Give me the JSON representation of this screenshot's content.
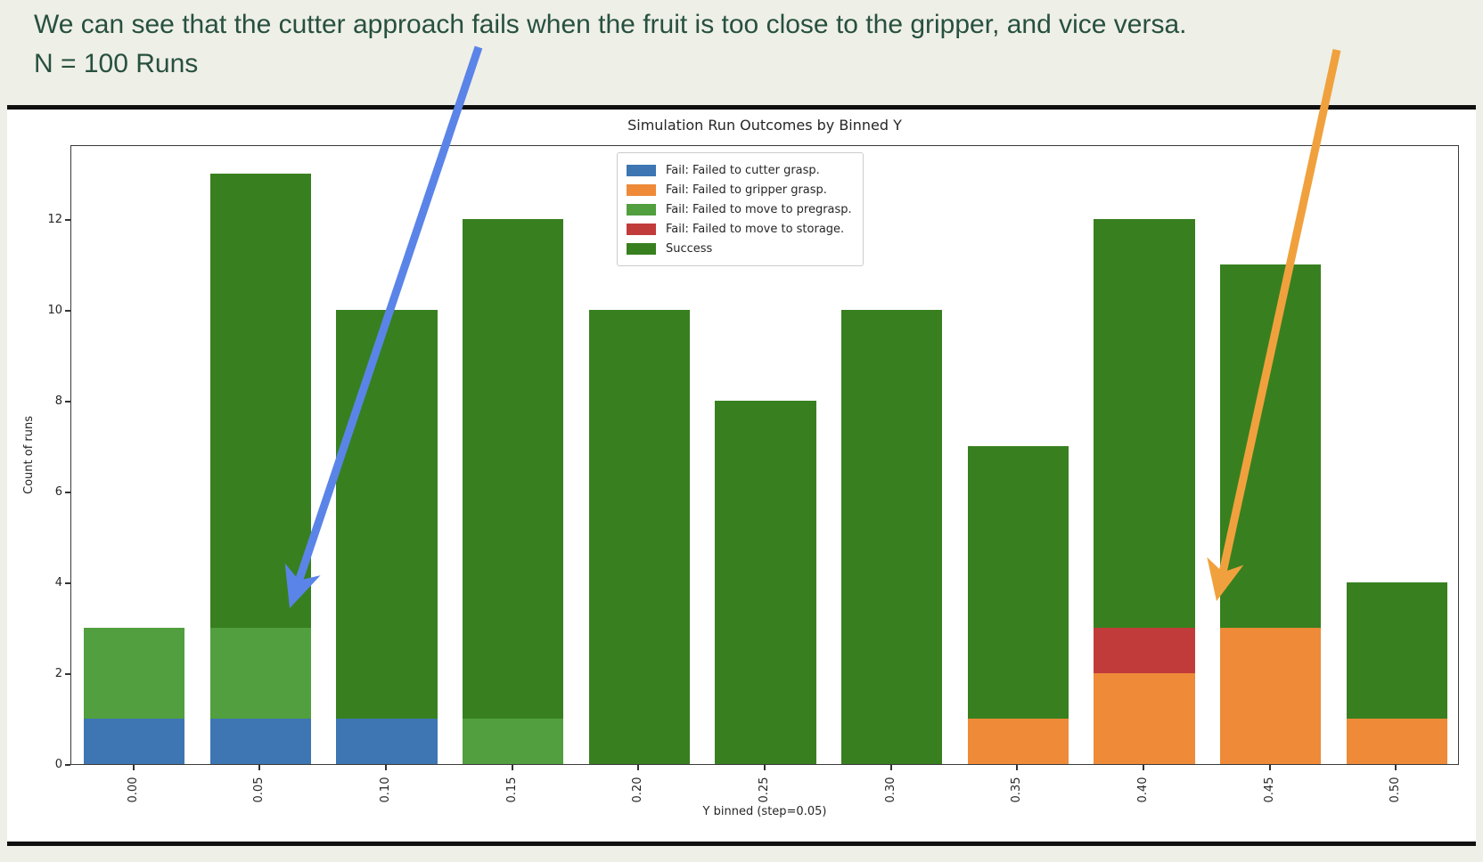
{
  "page": {
    "annotation_line1": "We can see that the cutter approach fails when the fruit is too close to the gripper, and vice versa.",
    "annotation_line2": "N = 100 Runs",
    "annotation_color": "#27503f",
    "background_color": "#eeefe7",
    "divider_color": "#101010"
  },
  "chart_data": {
    "type": "bar",
    "stacked": true,
    "title": "Simulation Run Outcomes by Binned Y",
    "xlabel": "Y binned (step=0.05)",
    "ylabel": "Count of runs",
    "categories": [
      "0.00",
      "0.05",
      "0.10",
      "0.15",
      "0.20",
      "0.25",
      "0.30",
      "0.35",
      "0.40",
      "0.45",
      "0.50"
    ],
    "series": [
      {
        "name": "Fail: Failed to cutter grasp.",
        "color": "#3d76b2",
        "values": [
          1,
          1,
          1,
          0,
          0,
          0,
          0,
          0,
          0,
          0,
          0
        ]
      },
      {
        "name": "Fail: Failed to gripper grasp.",
        "color": "#ee8a38",
        "values": [
          0,
          0,
          0,
          0,
          0,
          0,
          0,
          1,
          2,
          3,
          1
        ]
      },
      {
        "name": "Fail: Failed to move to pregrasp.",
        "color": "#519f3e",
        "values": [
          2,
          2,
          0,
          1,
          0,
          0,
          0,
          0,
          0,
          0,
          0
        ]
      },
      {
        "name": "Fail: Failed to move to storage.",
        "color": "#c23b3b",
        "values": [
          0,
          0,
          0,
          0,
          0,
          0,
          0,
          0,
          1,
          0,
          0
        ]
      },
      {
        "name": "Success",
        "color": "#38801f",
        "values": [
          0,
          10,
          9,
          11,
          10,
          8,
          10,
          6,
          9,
          8,
          3
        ]
      }
    ],
    "bar_totals": [
      3,
      13,
      10,
      12,
      10,
      8,
      10,
      7,
      12,
      11,
      4
    ],
    "n_runs_total": 100,
    "yticks": [
      0,
      2,
      4,
      6,
      8,
      10,
      12
    ],
    "ylim": [
      0,
      13.65
    ],
    "bar_width_fraction": 0.8,
    "grid": false,
    "legend_position": "upper center-right inside plot"
  },
  "annotations": {
    "arrows": [
      {
        "name": "cutter-fail-arrow",
        "color": "#5b84e8",
        "from": [
          537,
          53
        ],
        "to": [
          325,
          683
        ]
      },
      {
        "name": "gripper-fail-arrow",
        "color": "#f0a13d",
        "from": [
          1500,
          56
        ],
        "to": [
          1365,
          675
        ]
      }
    ]
  }
}
